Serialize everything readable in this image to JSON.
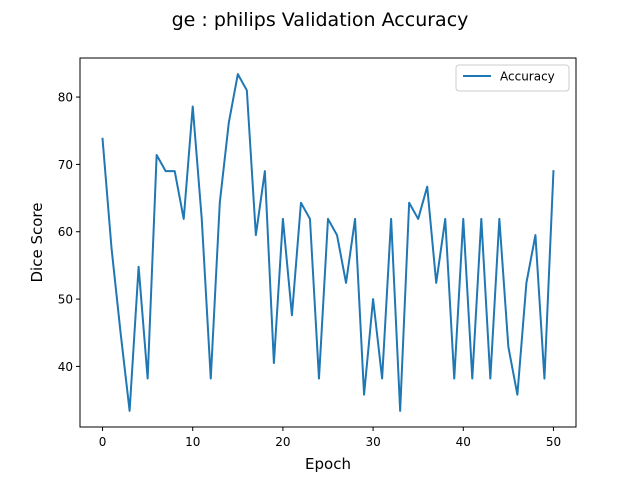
{
  "chart_data": {
    "type": "line",
    "title": "ge : philips Validation Accuracy",
    "xlabel": "Epoch",
    "ylabel": "Dice Score",
    "xlim": [
      -2.5,
      52.5
    ],
    "ylim": [
      31.0,
      85.8
    ],
    "xticks": [
      0,
      10,
      20,
      30,
      40,
      50
    ],
    "yticks": [
      40,
      50,
      60,
      70,
      80
    ],
    "grid": false,
    "legend_position": "top-right",
    "series": [
      {
        "name": "Accuracy",
        "color": "#1f77b4",
        "x": [
          0,
          1,
          2,
          3,
          4,
          5,
          6,
          7,
          8,
          9,
          10,
          11,
          12,
          13,
          14,
          15,
          16,
          17,
          18,
          19,
          20,
          21,
          22,
          23,
          24,
          25,
          26,
          27,
          28,
          29,
          30,
          31,
          32,
          33,
          34,
          35,
          36,
          37,
          38,
          39,
          40,
          41,
          42,
          43,
          44,
          45,
          46,
          47,
          48,
          49,
          50
        ],
        "values": [
          73.8,
          57.5,
          45.0,
          33.4,
          54.8,
          38.2,
          71.4,
          69.0,
          69.0,
          61.9,
          78.6,
          61.9,
          38.2,
          64.3,
          76.2,
          83.4,
          81.0,
          59.5,
          69.0,
          40.5,
          61.9,
          47.6,
          64.3,
          61.9,
          38.2,
          61.9,
          59.5,
          52.4,
          61.9,
          35.8,
          50.0,
          38.2,
          61.9,
          33.4,
          64.3,
          61.9,
          66.7,
          52.4,
          61.9,
          38.2,
          61.9,
          38.2,
          61.9,
          38.2,
          61.9,
          42.9,
          35.8,
          52.4,
          59.5,
          38.2,
          69.0
        ]
      }
    ]
  }
}
